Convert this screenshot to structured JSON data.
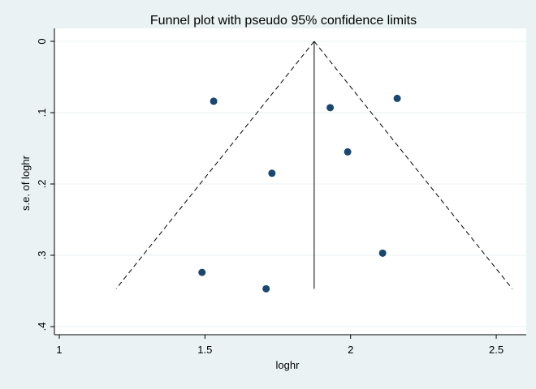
{
  "chart_data": {
    "type": "scatter",
    "title": "Funnel plot with pseudo 95% confidence limits",
    "xlabel": "loghr",
    "ylabel": "s.e. of loghr",
    "xlim": [
      1,
      2.55
    ],
    "ylim": [
      0,
      0.4
    ],
    "y_reversed": true,
    "grid": true,
    "xticks": [
      1,
      1.5,
      2,
      2.5
    ],
    "xtick_labels": [
      "1",
      "1.5",
      "2",
      "2.5"
    ],
    "yticks": [
      0,
      0.1,
      0.2,
      0.3,
      0.4
    ],
    "ytick_labels": [
      "0",
      ".1",
      ".2",
      ".3",
      ".4"
    ],
    "points": [
      {
        "x": 1.53,
        "y": 0.084
      },
      {
        "x": 2.16,
        "y": 0.08
      },
      {
        "x": 1.93,
        "y": 0.093
      },
      {
        "x": 1.99,
        "y": 0.155
      },
      {
        "x": 1.73,
        "y": 0.185
      },
      {
        "x": 2.11,
        "y": 0.297
      },
      {
        "x": 1.49,
        "y": 0.324
      },
      {
        "x": 1.71,
        "y": 0.347
      }
    ],
    "center_line": {
      "x": 1.875,
      "y_from": 0,
      "y_to": 0.347
    },
    "confidence_limits": {
      "apex": {
        "x": 1.875,
        "y": 0
      },
      "left_end": {
        "x": 1.195,
        "y": 0.347
      },
      "right_end": {
        "x": 2.555,
        "y": 0.347
      }
    },
    "colors": {
      "point": "#1a476f",
      "plot_bg": "#ffffff",
      "outer_bg": "#eaf2f3",
      "grid": "#eaf2f3",
      "line": "#000000"
    }
  }
}
